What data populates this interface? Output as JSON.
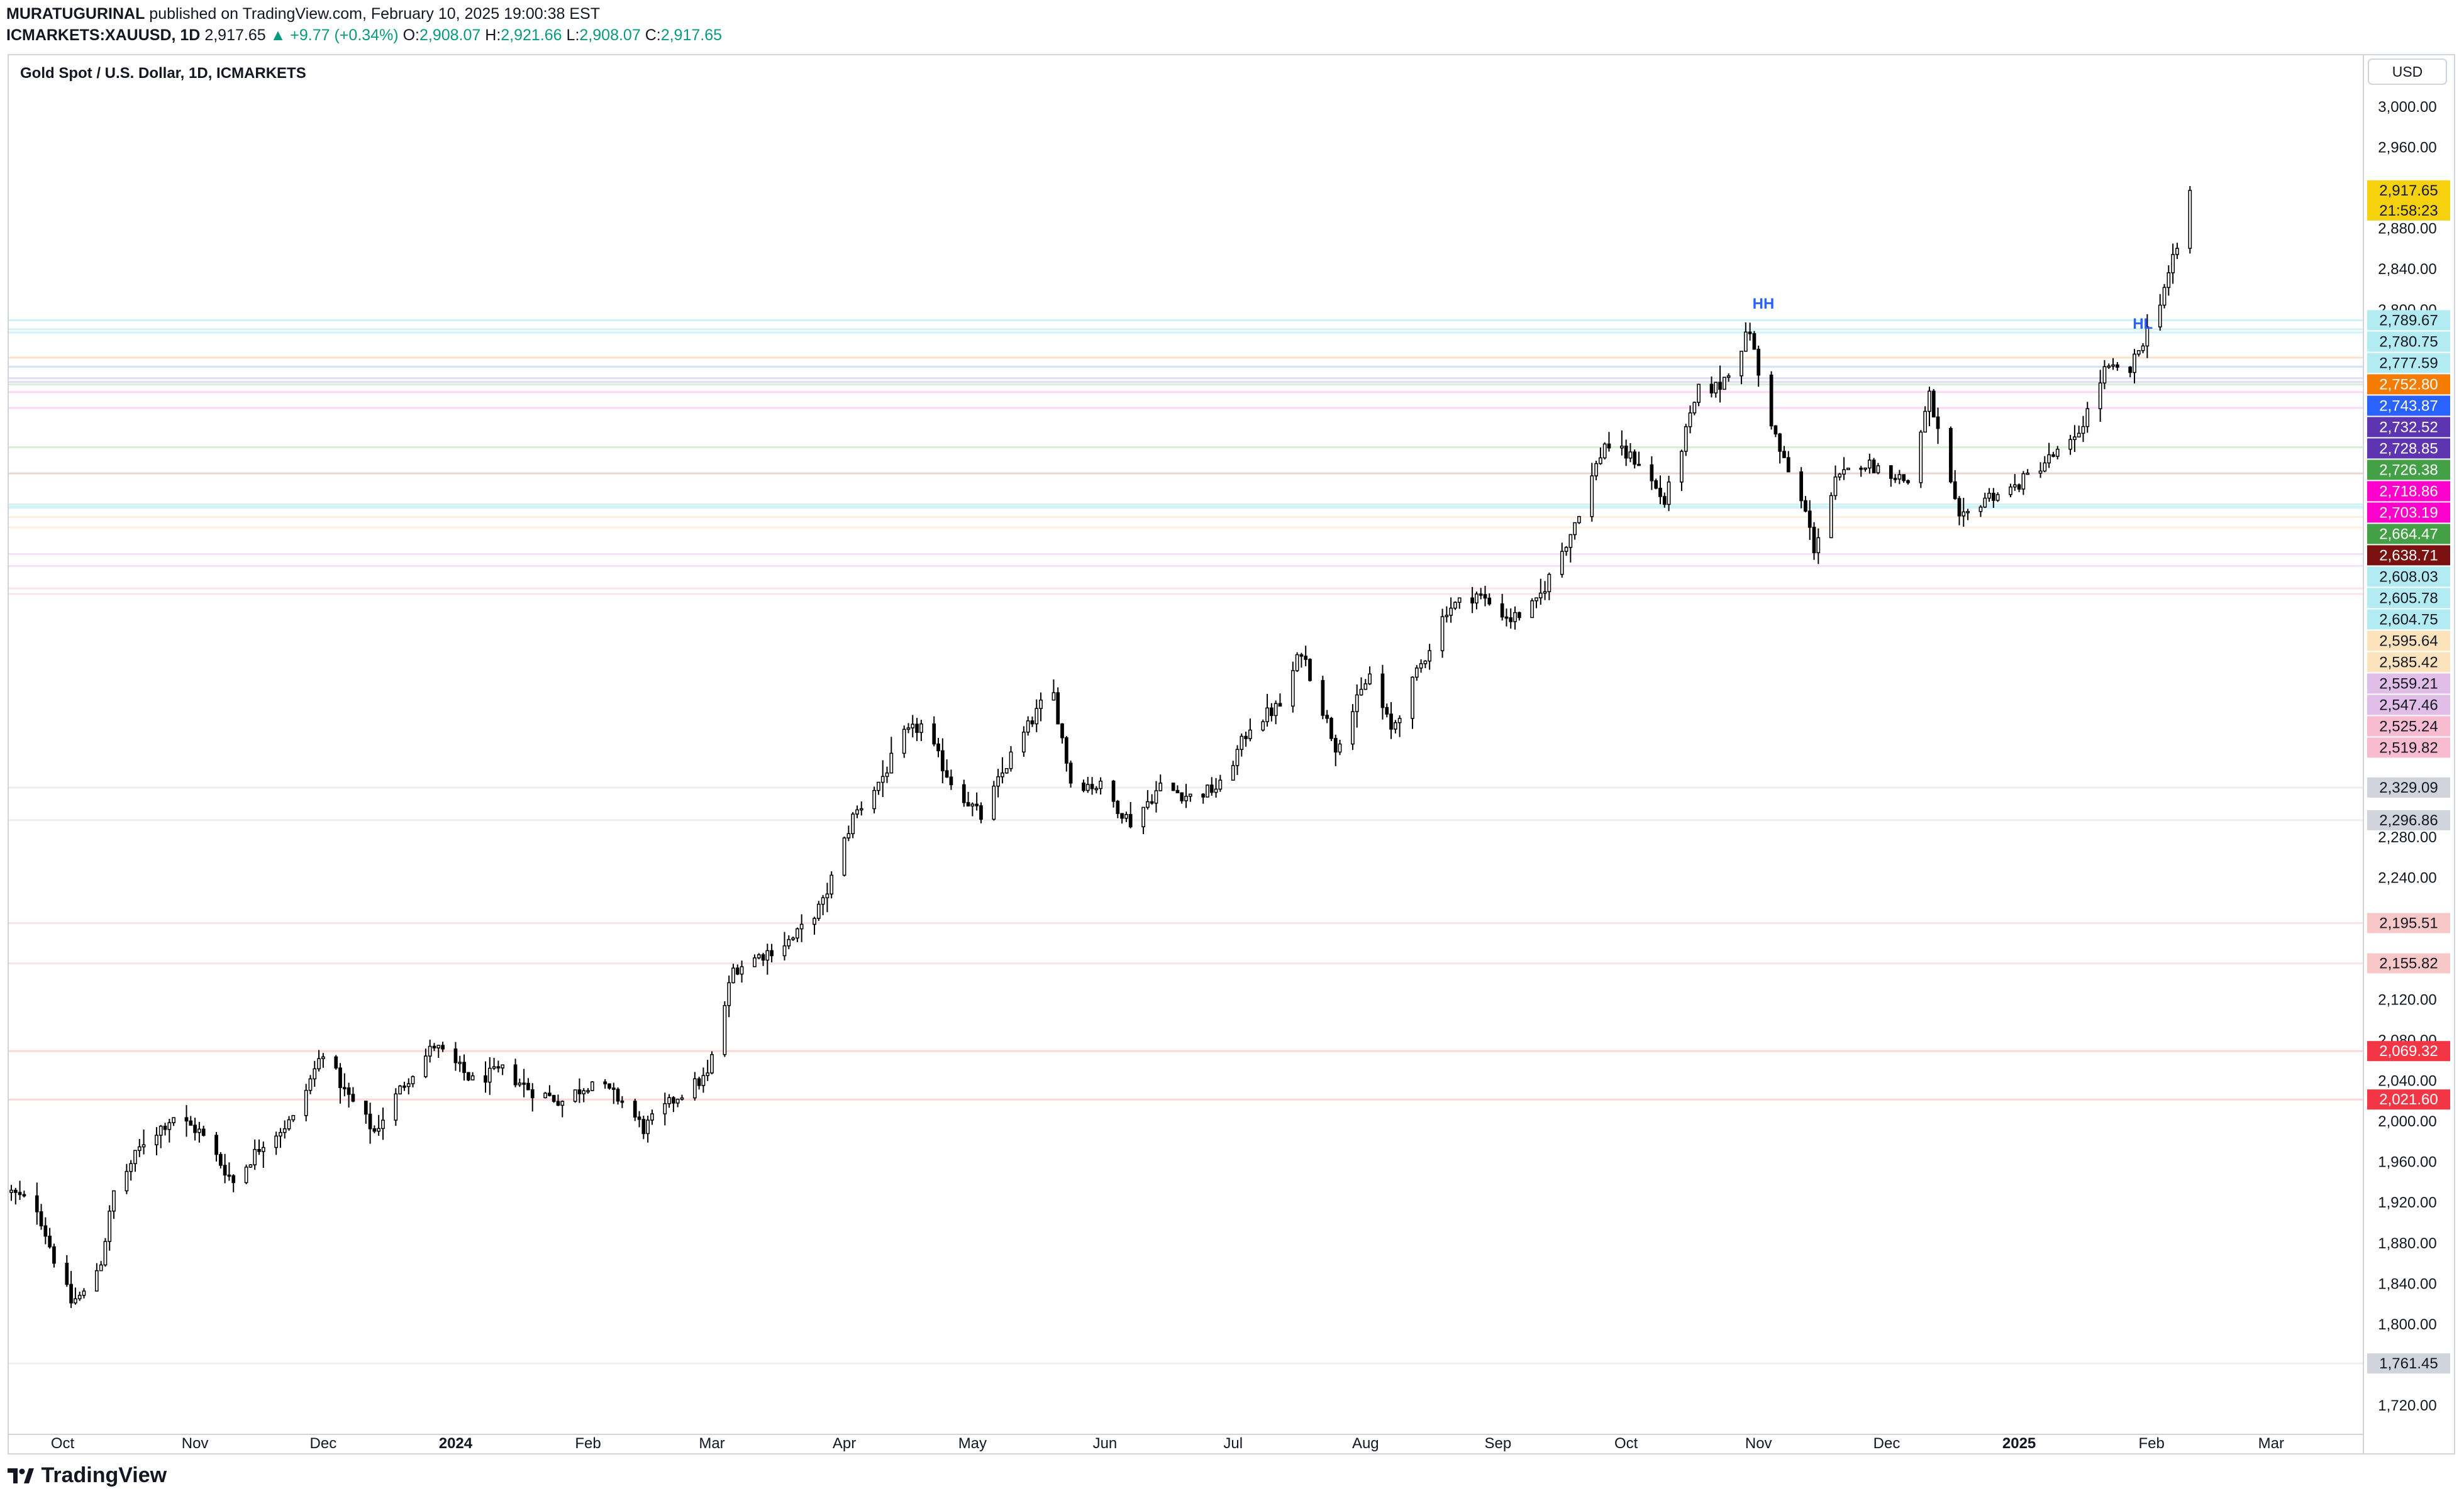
{
  "header": {
    "author": "MURATUGURINAL",
    "published_text": "published on TradingView.com, February 10, 2025 19:00:38 EST",
    "symbol": "ICMARKETS:XAUUSD, 1D",
    "last": "2,917.65",
    "change": "▲ +9.77 (+0.34%)",
    "o_label": "O:",
    "o": "2,908.07",
    "h_label": "H:",
    "h": "2,921.66",
    "l_label": "L:",
    "l": "2,908.07",
    "c_label": "C:",
    "c": "2,917.65"
  },
  "chart_title": "Gold Spot / U.S. Dollar, 1D, ICMARKETS",
  "currency": "USD",
  "countdown": "21:58:23",
  "footer": {
    "brand": "TradingView"
  },
  "colors": {
    "up": "#ffffff",
    "down": "#000000",
    "wick": "#000000",
    "last_price": "#f6d20e",
    "hh_label": "#2962ff"
  },
  "chart_data": {
    "type": "candlestick",
    "title": "Gold Spot / U.S. Dollar, 1D, ICMARKETS",
    "y_unit": "USD",
    "ylim": [
      1700,
      3030
    ],
    "y_ticks": [
      3000,
      2960,
      2880,
      2840,
      2800,
      2280,
      2240,
      2120,
      2080,
      2040,
      2000,
      1960,
      1920,
      1880,
      1840,
      1800,
      1720
    ],
    "y_tick_labels": [
      "3,000.00",
      "2,960.00",
      "2,880.00",
      "2,840.00",
      "2,800.00",
      "2,280.00",
      "2,240.00",
      "2,120.00",
      "2,080.00",
      "2,040.00",
      "2,000.00",
      "1,960.00",
      "1,920.00",
      "1,880.00",
      "1,840.00",
      "1,800.00",
      "1,720.00"
    ],
    "x_labels": [
      {
        "label": "Oct",
        "date": "2023-10-01",
        "bold": false
      },
      {
        "label": "Nov",
        "date": "2023-11-01",
        "bold": false
      },
      {
        "label": "Dec",
        "date": "2023-12-01",
        "bold": false
      },
      {
        "label": "2024",
        "date": "2024-01-01",
        "bold": true
      },
      {
        "label": "Feb",
        "date": "2024-02-01",
        "bold": false
      },
      {
        "label": "Mar",
        "date": "2024-03-01",
        "bold": false
      },
      {
        "label": "Apr",
        "date": "2024-04-01",
        "bold": false
      },
      {
        "label": "May",
        "date": "2024-05-01",
        "bold": false
      },
      {
        "label": "Jun",
        "date": "2024-06-01",
        "bold": false
      },
      {
        "label": "Jul",
        "date": "2024-07-01",
        "bold": false
      },
      {
        "label": "Aug",
        "date": "2024-08-01",
        "bold": false
      },
      {
        "label": "Sep",
        "date": "2024-09-01",
        "bold": false
      },
      {
        "label": "Oct",
        "date": "2024-10-01",
        "bold": false
      },
      {
        "label": "Nov",
        "date": "2024-11-01",
        "bold": false
      },
      {
        "label": "Dec",
        "date": "2024-12-01",
        "bold": false
      },
      {
        "label": "2025",
        "date": "2025-01-01",
        "bold": true
      },
      {
        "label": "Feb",
        "date": "2025-02-01",
        "bold": false
      },
      {
        "label": "Mar",
        "date": "2025-03-01",
        "bold": false
      }
    ],
    "x_range": [
      "2023-09-19",
      "2025-03-22"
    ],
    "price_path": [
      [
        "2023-09-19",
        1930
      ],
      [
        "2023-09-25",
        1915
      ],
      [
        "2023-09-29",
        1865
      ],
      [
        "2023-10-03",
        1822
      ],
      [
        "2023-10-06",
        1830
      ],
      [
        "2023-10-10",
        1862
      ],
      [
        "2023-10-13",
        1930
      ],
      [
        "2023-10-20",
        1980
      ],
      [
        "2023-10-27",
        2005
      ],
      [
        "2023-11-02",
        1990
      ],
      [
        "2023-11-10",
        1940
      ],
      [
        "2023-11-17",
        1980
      ],
      [
        "2023-11-24",
        2002
      ],
      [
        "2023-12-01",
        2070
      ],
      [
        "2023-12-06",
        2030
      ],
      [
        "2023-12-13",
        1990
      ],
      [
        "2023-12-20",
        2038
      ],
      [
        "2023-12-27",
        2075
      ],
      [
        "2024-01-05",
        2040
      ],
      [
        "2024-01-12",
        2050
      ],
      [
        "2024-01-19",
        2030
      ],
      [
        "2024-01-26",
        2020
      ],
      [
        "2024-02-02",
        2040
      ],
      [
        "2024-02-09",
        2020
      ],
      [
        "2024-02-14",
        1993
      ],
      [
        "2024-02-22",
        2025
      ],
      [
        "2024-02-29",
        2045
      ],
      [
        "2024-03-06",
        2150
      ],
      [
        "2024-03-13",
        2165
      ],
      [
        "2024-03-20",
        2180
      ],
      [
        "2024-03-27",
        2215
      ],
      [
        "2024-04-03",
        2300
      ],
      [
        "2024-04-10",
        2340
      ],
      [
        "2024-04-15",
        2380
      ],
      [
        "2024-04-19",
        2390
      ],
      [
        "2024-04-26",
        2335
      ],
      [
        "2024-05-03",
        2300
      ],
      [
        "2024-05-10",
        2360
      ],
      [
        "2024-05-17",
        2410
      ],
      [
        "2024-05-20",
        2420
      ],
      [
        "2024-05-24",
        2335
      ],
      [
        "2024-05-31",
        2330
      ],
      [
        "2024-06-07",
        2295
      ],
      [
        "2024-06-14",
        2330
      ],
      [
        "2024-06-21",
        2320
      ],
      [
        "2024-06-28",
        2330
      ],
      [
        "2024-07-05",
        2390
      ],
      [
        "2024-07-12",
        2410
      ],
      [
        "2024-07-17",
        2465
      ],
      [
        "2024-07-25",
        2370
      ],
      [
        "2024-08-02",
        2440
      ],
      [
        "2024-08-07",
        2385
      ],
      [
        "2024-08-14",
        2450
      ],
      [
        "2024-08-20",
        2505
      ],
      [
        "2024-08-27",
        2520
      ],
      [
        "2024-09-04",
        2495
      ],
      [
        "2024-09-10",
        2510
      ],
      [
        "2024-09-18",
        2580
      ],
      [
        "2024-09-26",
        2668
      ],
      [
        "2024-10-04",
        2650
      ],
      [
        "2024-10-10",
        2610
      ],
      [
        "2024-10-18",
        2720
      ],
      [
        "2024-10-23",
        2725
      ],
      [
        "2024-10-30",
        2780
      ],
      [
        "2024-11-01",
        2735
      ],
      [
        "2024-11-06",
        2660
      ],
      [
        "2024-11-12",
        2600
      ],
      [
        "2024-11-14",
        2565
      ],
      [
        "2024-11-19",
        2630
      ],
      [
        "2024-11-25",
        2650
      ],
      [
        "2024-12-02",
        2640
      ],
      [
        "2024-12-06",
        2630
      ],
      [
        "2024-12-11",
        2715
      ],
      [
        "2024-12-18",
        2590
      ],
      [
        "2024-12-24",
        2615
      ],
      [
        "2024-12-31",
        2625
      ],
      [
        "2025-01-07",
        2650
      ],
      [
        "2025-01-14",
        2670
      ],
      [
        "2025-01-21",
        2740
      ],
      [
        "2025-01-27",
        2740
      ],
      [
        "2025-02-03",
        2810
      ],
      [
        "2025-02-07",
        2860
      ],
      [
        "2025-02-10",
        2917.65
      ]
    ],
    "current_price": 2917.65,
    "annotations": [
      {
        "label": "HH",
        "date": "2024-10-30",
        "price": 2800
      },
      {
        "label": "HL",
        "date": "2025-01-27",
        "price": 2780
      }
    ],
    "price_levels": [
      {
        "value": 2789.67,
        "label": "2,789.67",
        "bg": "#b2ebf2",
        "fg": "#131722",
        "line": "#d0f3f7"
      },
      {
        "value": 2780.75,
        "label": "2,780.75",
        "bg": "#b2ebf2",
        "fg": "#131722",
        "line": "#d0f3f7"
      },
      {
        "value": 2777.59,
        "label": "2,777.59",
        "bg": "#b2ebf2",
        "fg": "#131722",
        "line": "#d0f3f7"
      },
      {
        "value": 2752.8,
        "label": "2,752.80",
        "bg": "#f57c00",
        "fg": "#ffffff",
        "line": "#fde2c8"
      },
      {
        "value": 2743.87,
        "label": "2,743.87",
        "bg": "#2962ff",
        "fg": "#ffffff",
        "line": "#d6e0ff"
      },
      {
        "value": 2732.52,
        "label": "2,732.52",
        "bg": "#5e35b1",
        "fg": "#ffffff",
        "line": "#e3dcf3"
      },
      {
        "value": 2728.85,
        "label": "2,728.85",
        "bg": "#5e35b1",
        "fg": "#ffffff",
        "line": "#e3dcf3"
      },
      {
        "value": 2726.38,
        "label": "2,726.38",
        "bg": "#43a047",
        "fg": "#ffffff",
        "line": "#d6efd7"
      },
      {
        "value": 2718.86,
        "label": "2,718.86",
        "bg": "#ff00cc",
        "fg": "#ffffff",
        "line": "#ffd6f5"
      },
      {
        "value": 2703.19,
        "label": "2,703.19",
        "bg": "#ff00cc",
        "fg": "#ffffff",
        "line": "#ffd6f5"
      },
      {
        "value": 2664.47,
        "label": "2,664.47",
        "bg": "#43a047",
        "fg": "#ffffff",
        "line": "#d6efd7"
      },
      {
        "value": 2638.71,
        "label": "2,638.71",
        "bg": "#7b1010",
        "fg": "#ffffff",
        "line": "#ecd4d4"
      },
      {
        "value": 2608.03,
        "label": "2,608.03",
        "bg": "#b2ebf2",
        "fg": "#131722",
        "line": "#d0f3f7"
      },
      {
        "value": 2605.78,
        "label": "2,605.78",
        "bg": "#b2ebf2",
        "fg": "#131722",
        "line": "#d0f3f7"
      },
      {
        "value": 2604.75,
        "label": "2,604.75",
        "bg": "#b2ebf2",
        "fg": "#131722",
        "line": "#d0f3f7"
      },
      {
        "value": 2595.64,
        "label": "2,595.64",
        "bg": "#fce3bb",
        "fg": "#131722",
        "line": "#fdf1de"
      },
      {
        "value": 2585.42,
        "label": "2,585.42",
        "bg": "#fce3bb",
        "fg": "#131722",
        "line": "#fdf1de"
      },
      {
        "value": 2559.21,
        "label": "2,559.21",
        "bg": "#e1bee7",
        "fg": "#131722",
        "line": "#f2e3f4"
      },
      {
        "value": 2547.46,
        "label": "2,547.46",
        "bg": "#e1bee7",
        "fg": "#131722",
        "line": "#f2e3f4"
      },
      {
        "value": 2525.24,
        "label": "2,525.24",
        "bg": "#f8bbd0",
        "fg": "#131722",
        "line": "#fde3ec"
      },
      {
        "value": 2519.82,
        "label": "2,519.82",
        "bg": "#f8bbd0",
        "fg": "#131722",
        "line": "#fde3ec"
      },
      {
        "value": 2329.09,
        "label": "2,329.09",
        "bg": "#d1d4dc",
        "fg": "#131722",
        "line": "#eceef2"
      },
      {
        "value": 2296.86,
        "label": "2,296.86",
        "bg": "#d1d4dc",
        "fg": "#131722",
        "line": "#eceef2"
      },
      {
        "value": 2195.51,
        "label": "2,195.51",
        "bg": "#f8c8c8",
        "fg": "#131722",
        "line": "#fbe3e3"
      },
      {
        "value": 2155.82,
        "label": "2,155.82",
        "bg": "#f8c8c8",
        "fg": "#131722",
        "line": "#fbe3e3"
      },
      {
        "value": 2069.32,
        "label": "2,069.32",
        "bg": "#f23645",
        "fg": "#ffffff",
        "line": "#fdd6d9"
      },
      {
        "value": 2021.6,
        "label": "2,021.60",
        "bg": "#f23645",
        "fg": "#ffffff",
        "line": "#fdd6d9"
      },
      {
        "value": 1761.45,
        "label": "1,761.45",
        "bg": "#d1d4dc",
        "fg": "#131722",
        "line": "#eceef2"
      }
    ]
  }
}
